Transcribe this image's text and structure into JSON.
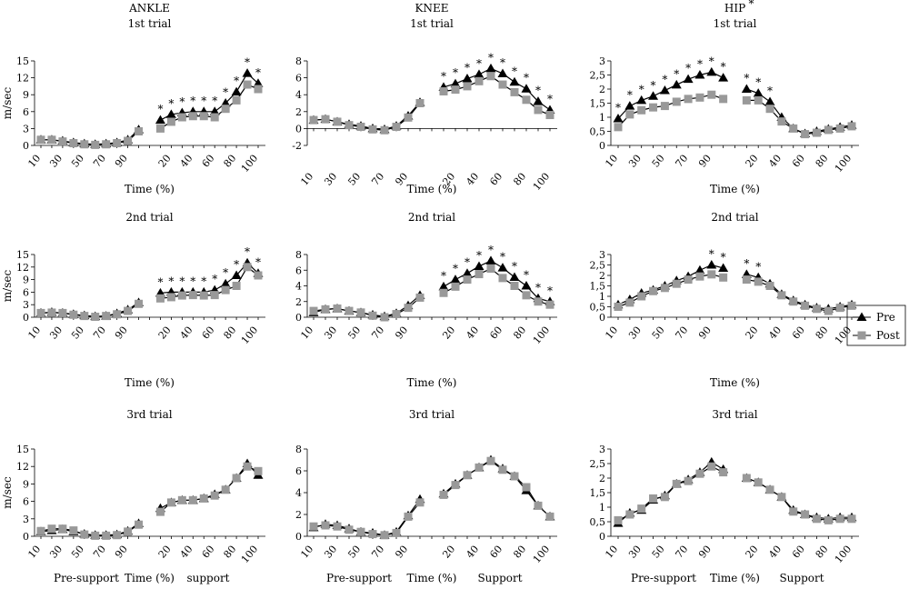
{
  "chart_data": [
    {
      "type": "line",
      "title": "ANKLE",
      "subtitle": "1st trial",
      "y_label": "m/sec",
      "x_label": "Time (%)",
      "categories": [
        "10",
        null,
        "30",
        null,
        "50",
        null,
        "70",
        null,
        "90",
        null,
        null,
        null,
        "20",
        null,
        "40",
        null,
        "60",
        null,
        "80",
        null,
        "100"
      ],
      "ylim": [
        0,
        15
      ],
      "yticks": [
        0,
        3,
        6,
        9,
        12,
        15
      ],
      "sig_mark": "*",
      "significant": [
        11,
        12,
        13,
        14,
        15,
        16,
        17,
        18,
        19,
        20
      ],
      "series": [
        {
          "name": "Pre",
          "color": "#000000",
          "marker": "triangle",
          "values": [
            1,
            1,
            0.8,
            0.5,
            0.3,
            0.2,
            0.3,
            0.5,
            1,
            2.8,
            null,
            4.5,
            5.5,
            5.8,
            6,
            6,
            6,
            7.5,
            9.5,
            12.8,
            11
          ]
        },
        {
          "name": "Post",
          "color": "#999999",
          "marker": "square",
          "values": [
            1,
            1,
            0.7,
            0.4,
            0.2,
            0.1,
            0.2,
            0.4,
            0.8,
            2.5,
            null,
            3,
            4.2,
            5,
            5.2,
            5.2,
            5,
            6.5,
            8,
            10.8,
            10
          ]
        }
      ]
    },
    {
      "type": "line",
      "title": "KNEE",
      "subtitle": "1st trial",
      "x_label": "Time (%)",
      "categories": [
        "10",
        null,
        "30",
        null,
        "50",
        null,
        "70",
        null,
        "90",
        null,
        null,
        null,
        "20",
        null,
        "40",
        null,
        "60",
        null,
        "80",
        null,
        "100"
      ],
      "ylim": [
        -2,
        8
      ],
      "yticks": [
        -2,
        0,
        2,
        4,
        6,
        8
      ],
      "sig_mark": "*",
      "significant": [
        11,
        12,
        13,
        14,
        15,
        16,
        17,
        18,
        19,
        20
      ],
      "series": [
        {
          "name": "Pre",
          "color": "#000000",
          "marker": "triangle",
          "values": [
            1,
            1.1,
            0.8,
            0.5,
            0.3,
            0,
            -0.1,
            0.3,
            1.5,
            3.1,
            null,
            4.9,
            5.3,
            5.9,
            6.4,
            7.1,
            6.5,
            5.5,
            4.7,
            3.2,
            2.2
          ]
        },
        {
          "name": "Post",
          "color": "#999999",
          "marker": "square",
          "values": [
            1,
            1.1,
            0.8,
            0.4,
            0.2,
            -0.1,
            -0.2,
            0.2,
            1.3,
            3,
            null,
            4.4,
            4.6,
            5,
            5.6,
            6.2,
            5.2,
            4.3,
            3.4,
            2.2,
            1.6
          ]
        }
      ]
    },
    {
      "type": "line",
      "title": "HIP",
      "title_mark": "*",
      "subtitle": "1st trial",
      "x_label": "Time (%)",
      "categories": [
        "10",
        null,
        "30",
        null,
        "50",
        null,
        "70",
        null,
        "90",
        null,
        null,
        null,
        "20",
        null,
        "40",
        null,
        "60",
        null,
        "80",
        null,
        "100"
      ],
      "ylim": [
        0,
        3
      ],
      "yticks": [
        0,
        {
          "value": 0.5,
          "label": "0,5"
        },
        1,
        {
          "value": 1.5,
          "label": "1,5"
        },
        2,
        {
          "value": 2.5,
          "label": "2,5"
        },
        3
      ],
      "sig_mark": "*",
      "significant": [
        0,
        1,
        2,
        3,
        4,
        5,
        6,
        7,
        8,
        9,
        11,
        12,
        13
      ],
      "series": [
        {
          "name": "Pre",
          "color": "#000000",
          "marker": "triangle",
          "values": [
            0.95,
            1.4,
            1.6,
            1.75,
            1.95,
            2.15,
            2.35,
            2.5,
            2.6,
            2.4,
            null,
            2,
            1.85,
            1.55,
            1,
            0.6,
            0.42,
            0.5,
            0.58,
            0.65,
            0.72
          ]
        },
        {
          "name": "Post",
          "color": "#999999",
          "marker": "square",
          "values": [
            0.65,
            1.1,
            1.25,
            1.35,
            1.4,
            1.55,
            1.65,
            1.7,
            1.8,
            1.65,
            null,
            1.6,
            1.6,
            1.3,
            0.85,
            0.6,
            0.4,
            0.45,
            0.55,
            0.6,
            0.68
          ]
        }
      ]
    },
    {
      "type": "line",
      "subtitle": "2nd trial",
      "y_label": "m/sec",
      "x_label": "Time (%)",
      "categories": [
        "10",
        null,
        "30",
        null,
        "50",
        null,
        "70",
        null,
        "90",
        null,
        null,
        null,
        "20",
        null,
        "40",
        null,
        "60",
        null,
        "80",
        null,
        "100"
      ],
      "ylim": [
        0,
        15
      ],
      "yticks": [
        0,
        3,
        6,
        9,
        12,
        15
      ],
      "sig_mark": "*",
      "significant": [
        11,
        12,
        13,
        14,
        15,
        16,
        17,
        18,
        19,
        20
      ],
      "series": [
        {
          "name": "Pre",
          "color": "#000000",
          "marker": "triangle",
          "values": [
            1,
            1.2,
            1,
            0.7,
            0.4,
            0.2,
            0.3,
            0.9,
            1.8,
            3.5,
            null,
            5.8,
            6,
            6,
            6,
            6,
            6.5,
            8,
            10,
            13,
            10.5
          ]
        },
        {
          "name": "Post",
          "color": "#999999",
          "marker": "square",
          "values": [
            1,
            1.1,
            1,
            0.6,
            0.3,
            0.1,
            0.3,
            0.7,
            1.5,
            3.2,
            null,
            4.5,
            4.8,
            5.2,
            5.3,
            5.2,
            5.3,
            6.5,
            7.5,
            12,
            10
          ]
        }
      ]
    },
    {
      "type": "line",
      "subtitle": "2nd trial",
      "x_label": "Time (%)",
      "categories": [
        "10",
        null,
        "30",
        null,
        "50",
        null,
        "70",
        null,
        "90",
        null,
        null,
        null,
        "20",
        null,
        "40",
        null,
        "60",
        null,
        "80",
        null,
        "100"
      ],
      "ylim": [
        0,
        8
      ],
      "yticks": [
        0,
        2,
        4,
        6,
        8
      ],
      "sig_mark": "*",
      "significant": [
        11,
        12,
        13,
        14,
        15,
        16,
        17,
        18,
        19,
        20
      ],
      "series": [
        {
          "name": "Pre",
          "color": "#000000",
          "marker": "triangle",
          "values": [
            0.6,
            1,
            1.1,
            0.8,
            0.6,
            0.3,
            0.1,
            0.5,
            1.5,
            2.8,
            null,
            3.9,
            4.8,
            5.6,
            6.5,
            7.2,
            6.3,
            5.1,
            4,
            2.4,
            2
          ]
        },
        {
          "name": "Post",
          "color": "#999999",
          "marker": "square",
          "values": [
            0.8,
            1,
            1.1,
            0.8,
            0.6,
            0.2,
            0,
            0.4,
            1.2,
            2.5,
            null,
            3.1,
            3.9,
            4.8,
            5.5,
            6.2,
            5,
            4,
            2.8,
            2,
            1.6
          ]
        }
      ]
    },
    {
      "type": "line",
      "subtitle": "2nd trial",
      "x_label": "Time (%)",
      "categories": [
        "10",
        null,
        "30",
        null,
        "50",
        null,
        "70",
        null,
        "90",
        null,
        null,
        null,
        "20",
        null,
        "40",
        null,
        "60",
        null,
        "80",
        null,
        "100"
      ],
      "ylim": [
        0,
        3
      ],
      "yticks": [
        0,
        {
          "value": 0.5,
          "label": "0,5"
        },
        1,
        {
          "value": 1.5,
          "label": "1,5"
        },
        2,
        {
          "value": 2.5,
          "label": "2,5"
        },
        3
      ],
      "sig_mark": "*",
      "significant": [
        8,
        9,
        11,
        12
      ],
      "series": [
        {
          "name": "Pre",
          "color": "#000000",
          "marker": "triangle",
          "values": [
            0.6,
            0.85,
            1.15,
            1.3,
            1.5,
            1.75,
            1.95,
            2.25,
            2.5,
            2.35,
            null,
            2.05,
            1.9,
            1.6,
            1.1,
            0.8,
            0.6,
            0.45,
            0.4,
            0.5,
            0.6
          ]
        },
        {
          "name": "Post",
          "color": "#999999",
          "marker": "square",
          "values": [
            0.5,
            0.7,
            1,
            1.25,
            1.4,
            1.6,
            1.8,
            1.95,
            2.05,
            1.9,
            null,
            1.8,
            1.7,
            1.5,
            1.05,
            0.75,
            0.55,
            0.4,
            0.3,
            0.45,
            0.55
          ]
        }
      ]
    },
    {
      "type": "line",
      "subtitle": "3rd trial",
      "y_label": "m/sec",
      "x_label": "Time (%)",
      "phase_labels": [
        "Pre-support",
        "support"
      ],
      "categories": [
        "10",
        null,
        "30",
        null,
        "50",
        null,
        "70",
        null,
        "90",
        null,
        null,
        null,
        "20",
        null,
        "40",
        null,
        "60",
        null,
        "80",
        null,
        "100"
      ],
      "ylim": [
        0,
        15
      ],
      "yticks": [
        0,
        3,
        6,
        9,
        12,
        15
      ],
      "sig_mark": "*",
      "significant": [],
      "series": [
        {
          "name": "Pre",
          "color": "#000000",
          "marker": "triangle",
          "values": [
            0.8,
            1,
            1.2,
            0.8,
            0.4,
            0.2,
            0.2,
            0.3,
            0.9,
            2.2,
            null,
            4.8,
            5.8,
            6.2,
            6.2,
            6.5,
            7.2,
            8,
            10,
            12.5,
            10.5
          ]
        },
        {
          "name": "Post",
          "color": "#999999",
          "marker": "square",
          "values": [
            0.9,
            1.3,
            1.3,
            1,
            0.3,
            0.1,
            0.1,
            0.2,
            0.8,
            2,
            null,
            4.2,
            5.8,
            6.2,
            6.2,
            6.5,
            7,
            8,
            10,
            12,
            11.2
          ]
        }
      ]
    },
    {
      "type": "line",
      "subtitle": "3rd trial",
      "x_label": "Time (%)",
      "phase_labels": [
        "Pre-support",
        "Support"
      ],
      "categories": [
        "10",
        null,
        "30",
        null,
        "50",
        null,
        "70",
        null,
        "90",
        null,
        null,
        null,
        "20",
        null,
        "40",
        null,
        "60",
        null,
        "80",
        null,
        "100"
      ],
      "ylim": [
        0,
        8
      ],
      "yticks": [
        0,
        2,
        4,
        6,
        8
      ],
      "sig_mark": "*",
      "significant": [],
      "series": [
        {
          "name": "Pre",
          "color": "#000000",
          "marker": "triangle",
          "values": [
            0.8,
            1.1,
            1,
            0.7,
            0.4,
            0.3,
            0.1,
            0.4,
            1.9,
            3.4,
            null,
            3.9,
            4.8,
            5.6,
            6.3,
            7,
            6.2,
            5.5,
            4.2,
            2.8,
            1.8
          ]
        },
        {
          "name": "Post",
          "color": "#999999",
          "marker": "square",
          "values": [
            0.9,
            1,
            0.9,
            0.6,
            0.4,
            0.2,
            0.1,
            0.3,
            1.8,
            3.1,
            null,
            3.8,
            4.7,
            5.6,
            6.3,
            6.9,
            6.1,
            5.5,
            4.5,
            2.8,
            1.8
          ]
        }
      ]
    },
    {
      "type": "line",
      "subtitle": "3rd trial",
      "x_label": "Time (%)",
      "phase_labels": [
        "Pre-support",
        "Support"
      ],
      "categories": [
        "10",
        null,
        "30",
        null,
        "50",
        null,
        "70",
        null,
        "90",
        null,
        null,
        null,
        "20",
        null,
        "40",
        null,
        "60",
        null,
        "80",
        null,
        "100"
      ],
      "ylim": [
        0,
        3
      ],
      "yticks": [
        0,
        {
          "value": 0.5,
          "label": "0,5"
        },
        1,
        {
          "value": 1.5,
          "label": "1,5"
        },
        2,
        {
          "value": 2.5,
          "label": "2,5"
        },
        3
      ],
      "sig_mark": "*",
      "significant": [],
      "series": [
        {
          "name": "Pre",
          "color": "#000000",
          "marker": "triangle",
          "values": [
            0.45,
            0.8,
            0.9,
            1.25,
            1.4,
            1.8,
            1.95,
            2.2,
            2.55,
            2.3,
            null,
            2,
            1.85,
            1.6,
            1.35,
            0.9,
            0.75,
            0.65,
            0.6,
            0.65,
            0.65
          ]
        },
        {
          "name": "Post",
          "color": "#999999",
          "marker": "square",
          "values": [
            0.55,
            0.75,
            0.95,
            1.3,
            1.35,
            1.8,
            1.9,
            2.15,
            2.4,
            2.2,
            null,
            2,
            1.85,
            1.6,
            1.35,
            0.85,
            0.75,
            0.6,
            0.55,
            0.6,
            0.6
          ]
        }
      ]
    }
  ]
}
